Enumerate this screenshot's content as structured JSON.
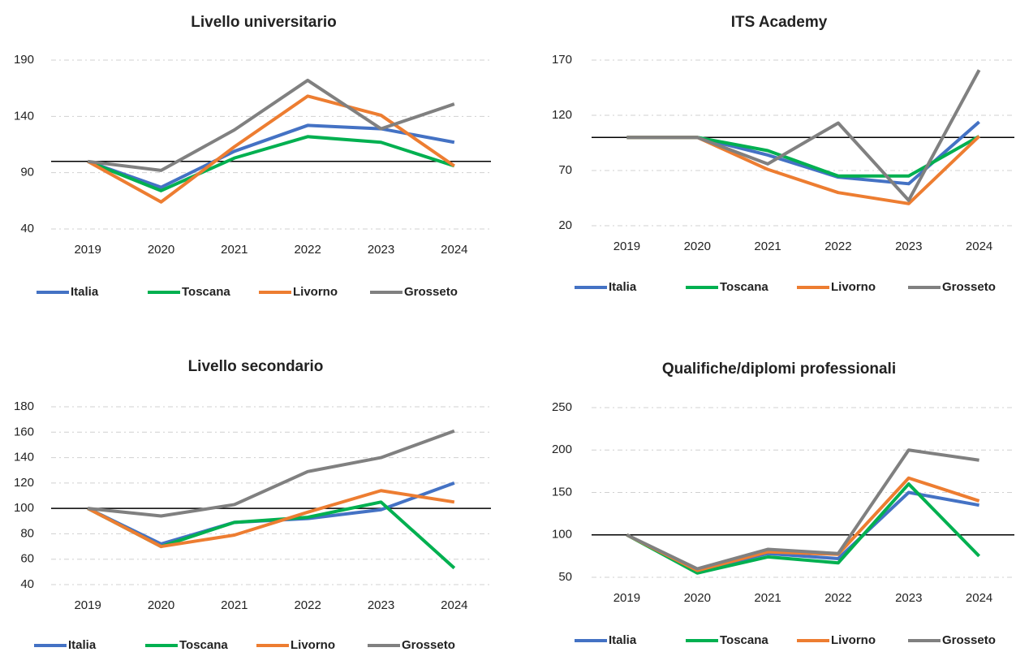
{
  "chart_data": [
    {
      "type": "line",
      "title": "Livello universitario",
      "categories": [
        "2019",
        "2020",
        "2021",
        "2022",
        "2023",
        "2024"
      ],
      "series": [
        {
          "name": "Italia",
          "color": "#4472c4",
          "values": [
            100,
            77,
            109,
            132,
            129,
            117
          ]
        },
        {
          "name": "Toscana",
          "color": "#00b050",
          "values": [
            100,
            74,
            103,
            122,
            117,
            96
          ]
        },
        {
          "name": "Livorno",
          "color": "#ed7d31",
          "values": [
            100,
            64,
            113,
            158,
            141,
            96
          ]
        },
        {
          "name": "Grosseto",
          "color": "#808080",
          "values": [
            100,
            92,
            128,
            172,
            129,
            151
          ]
        }
      ],
      "ylim": [
        40,
        190
      ],
      "yticks": [
        40,
        90,
        140,
        190
      ],
      "grid": true,
      "reference_line": 100,
      "legend": "bottom"
    },
    {
      "type": "line",
      "title": "ITS Academy",
      "categories": [
        "2019",
        "2020",
        "2021",
        "2022",
        "2023",
        "2024"
      ],
      "series": [
        {
          "name": "Italia",
          "color": "#4472c4",
          "values": [
            100,
            100,
            84,
            64,
            58,
            114
          ]
        },
        {
          "name": "Toscana",
          "color": "#00b050",
          "values": [
            100,
            100,
            88,
            65,
            65,
            101
          ]
        },
        {
          "name": "Livorno",
          "color": "#ed7d31",
          "values": [
            100,
            100,
            71,
            50,
            40,
            101
          ]
        },
        {
          "name": "Grosseto",
          "color": "#808080",
          "values": [
            100,
            100,
            76,
            113,
            43,
            161
          ]
        }
      ],
      "ylim": [
        20,
        170
      ],
      "yticks": [
        20,
        70,
        120,
        170
      ],
      "grid": true,
      "reference_line": 100,
      "legend": "bottom"
    },
    {
      "type": "line",
      "title": "Livello secondario",
      "categories": [
        "2019",
        "2020",
        "2021",
        "2022",
        "2023",
        "2024"
      ],
      "series": [
        {
          "name": "Italia",
          "color": "#4472c4",
          "values": [
            100,
            72,
            89,
            92,
            99,
            120
          ]
        },
        {
          "name": "Toscana",
          "color": "#00b050",
          "values": [
            100,
            70,
            89,
            93,
            105,
            53
          ]
        },
        {
          "name": "Livorno",
          "color": "#ed7d31",
          "values": [
            100,
            70,
            79,
            97,
            114,
            105
          ]
        },
        {
          "name": "Grosseto",
          "color": "#808080",
          "values": [
            100,
            94,
            103,
            129,
            140,
            161
          ]
        }
      ],
      "ylim": [
        40,
        180
      ],
      "yticks": [
        40,
        60,
        80,
        100,
        120,
        140,
        160,
        180
      ],
      "grid": true,
      "reference_line": 100,
      "legend": "bottom"
    },
    {
      "type": "line",
      "title": "Qualifiche/diplomi professionali",
      "categories": [
        "2019",
        "2020",
        "2021",
        "2022",
        "2023",
        "2024"
      ],
      "series": [
        {
          "name": "Italia",
          "color": "#4472c4",
          "values": [
            100,
            58,
            78,
            72,
            150,
            135
          ]
        },
        {
          "name": "Toscana",
          "color": "#00b050",
          "values": [
            100,
            55,
            74,
            67,
            160,
            75
          ]
        },
        {
          "name": "Livorno",
          "color": "#ed7d31",
          "values": [
            100,
            58,
            80,
            77,
            167,
            140
          ]
        },
        {
          "name": "Grosseto",
          "color": "#808080",
          "values": [
            100,
            60,
            83,
            78,
            200,
            188
          ]
        }
      ],
      "ylim": [
        50,
        250
      ],
      "yticks": [
        50,
        100,
        150,
        200,
        250
      ],
      "grid": true,
      "reference_line": 100,
      "legend": "bottom"
    }
  ]
}
